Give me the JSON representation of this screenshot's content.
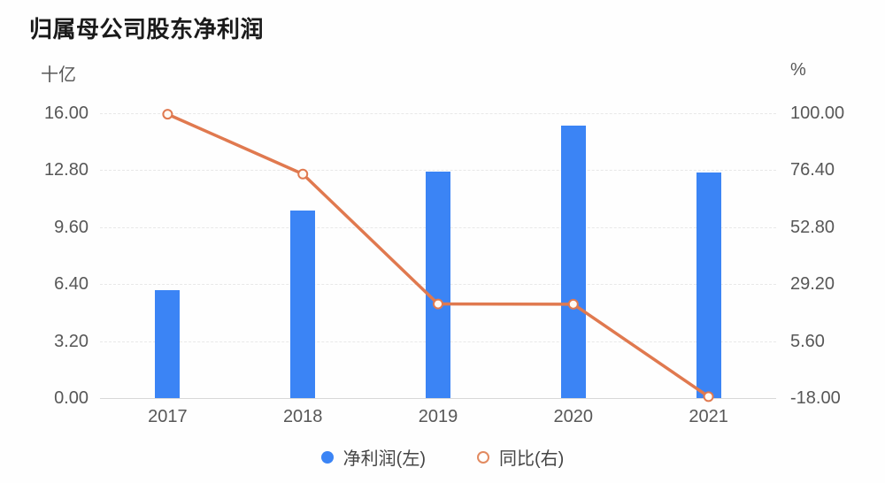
{
  "chart": {
    "title": "归属母公司股东净利润",
    "left_axis_unit": "十亿",
    "right_axis_unit": "%",
    "legend": [
      {
        "label": "净利润(左)",
        "marker": "filled-circle",
        "color": "#3b84f5"
      },
      {
        "label": "同比(右)",
        "marker": "hollow-circle",
        "color": "#e28a60"
      }
    ]
  },
  "chart_data": {
    "type": "bar+line combo",
    "title": "归属母公司股东净利润",
    "categories": [
      "2017",
      "2018",
      "2019",
      "2020",
      "2021"
    ],
    "series": [
      {
        "name": "净利润(左)",
        "type": "bar",
        "axis": "left",
        "color": "#3b84f5",
        "values": [
          6.05,
          10.55,
          12.7,
          15.3,
          12.65
        ]
      },
      {
        "name": "同比(右)",
        "type": "line",
        "axis": "right",
        "color": "#e0794f",
        "marker_fill": "#fffaf4",
        "values": [
          99.6,
          74.8,
          21.0,
          20.9,
          -17.4
        ]
      }
    ],
    "left_axis": {
      "unit": "十亿",
      "min": 0,
      "max": 16,
      "ticks": [
        "16.00",
        "12.80",
        "9.60",
        "6.40",
        "3.20",
        "0.00"
      ]
    },
    "right_axis": {
      "unit": "%",
      "min": -18,
      "max": 100,
      "ticks": [
        "100.00",
        "76.40",
        "52.80",
        "29.20",
        "5.60",
        "-18.00"
      ]
    },
    "grid": "horizontal dashed",
    "legend_position": "bottom-center"
  }
}
